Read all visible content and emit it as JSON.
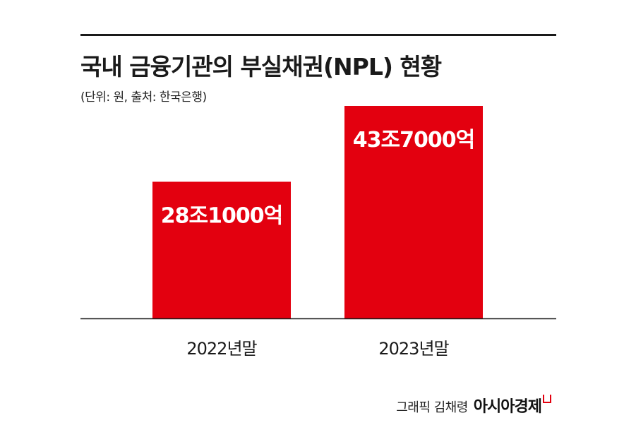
{
  "title": "국내 금융기관의 부실채권(NPL) 현황",
  "subtitle": "(단위: 원, 출처: 한국은행)",
  "credit": "그래픽 김채령",
  "brand": "아시아경제",
  "colors": {
    "bar": "#e3000f",
    "axis": "#1a1a1a",
    "text": "#1a1a1a"
  },
  "chart_data": {
    "type": "bar",
    "title": "국내 금융기관의 부실채권(NPL) 현황",
    "subtitle": "(단위: 원, 출처: 한국은행)",
    "unit": "원",
    "categories": [
      "2022년말",
      "2023년말"
    ],
    "values": [
      281000,
      437000
    ],
    "value_unit": "억원",
    "data_labels": [
      "28조1000억",
      "43조7000억"
    ],
    "ylim": [
      0,
      437000
    ],
    "grid": false,
    "legend": "none"
  }
}
